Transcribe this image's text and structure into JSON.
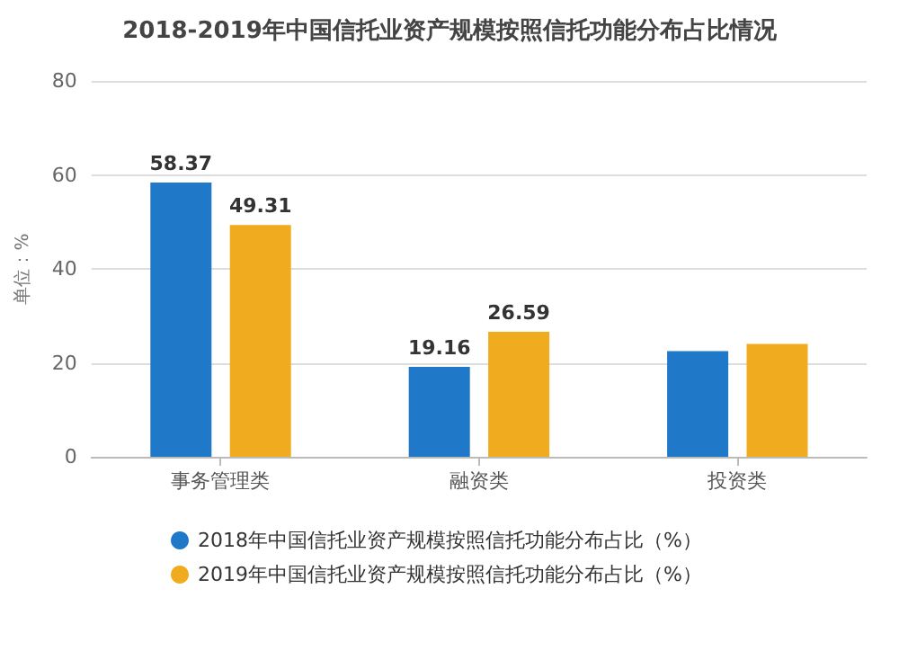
{
  "chart_data": {
    "type": "bar",
    "title": "2018-2019年中国信托业资产规模按照信托功能分布占比情况",
    "ylabel": "单位：%",
    "categories": [
      "事务管理类",
      "融资类",
      "投资类"
    ],
    "series": [
      {
        "name": "2018年中国信托业资产规模按照信托功能分布占比（%）",
        "color": "#1f78c8",
        "values": [
          58.37,
          19.16,
          22.5
        ],
        "value_labels": [
          "58.37",
          "19.16",
          null
        ]
      },
      {
        "name": "2019年中国信托业资产规模按照信托功能分布占比（%）",
        "color": "#f0ac1e",
        "values": [
          49.31,
          26.59,
          24
        ],
        "value_labels": [
          "49.31",
          "26.59",
          null
        ]
      }
    ],
    "ylim": [
      0,
      80
    ],
    "yticks": [
      0,
      20,
      40,
      60,
      80
    ],
    "grid": "y",
    "legend": "bottom"
  }
}
